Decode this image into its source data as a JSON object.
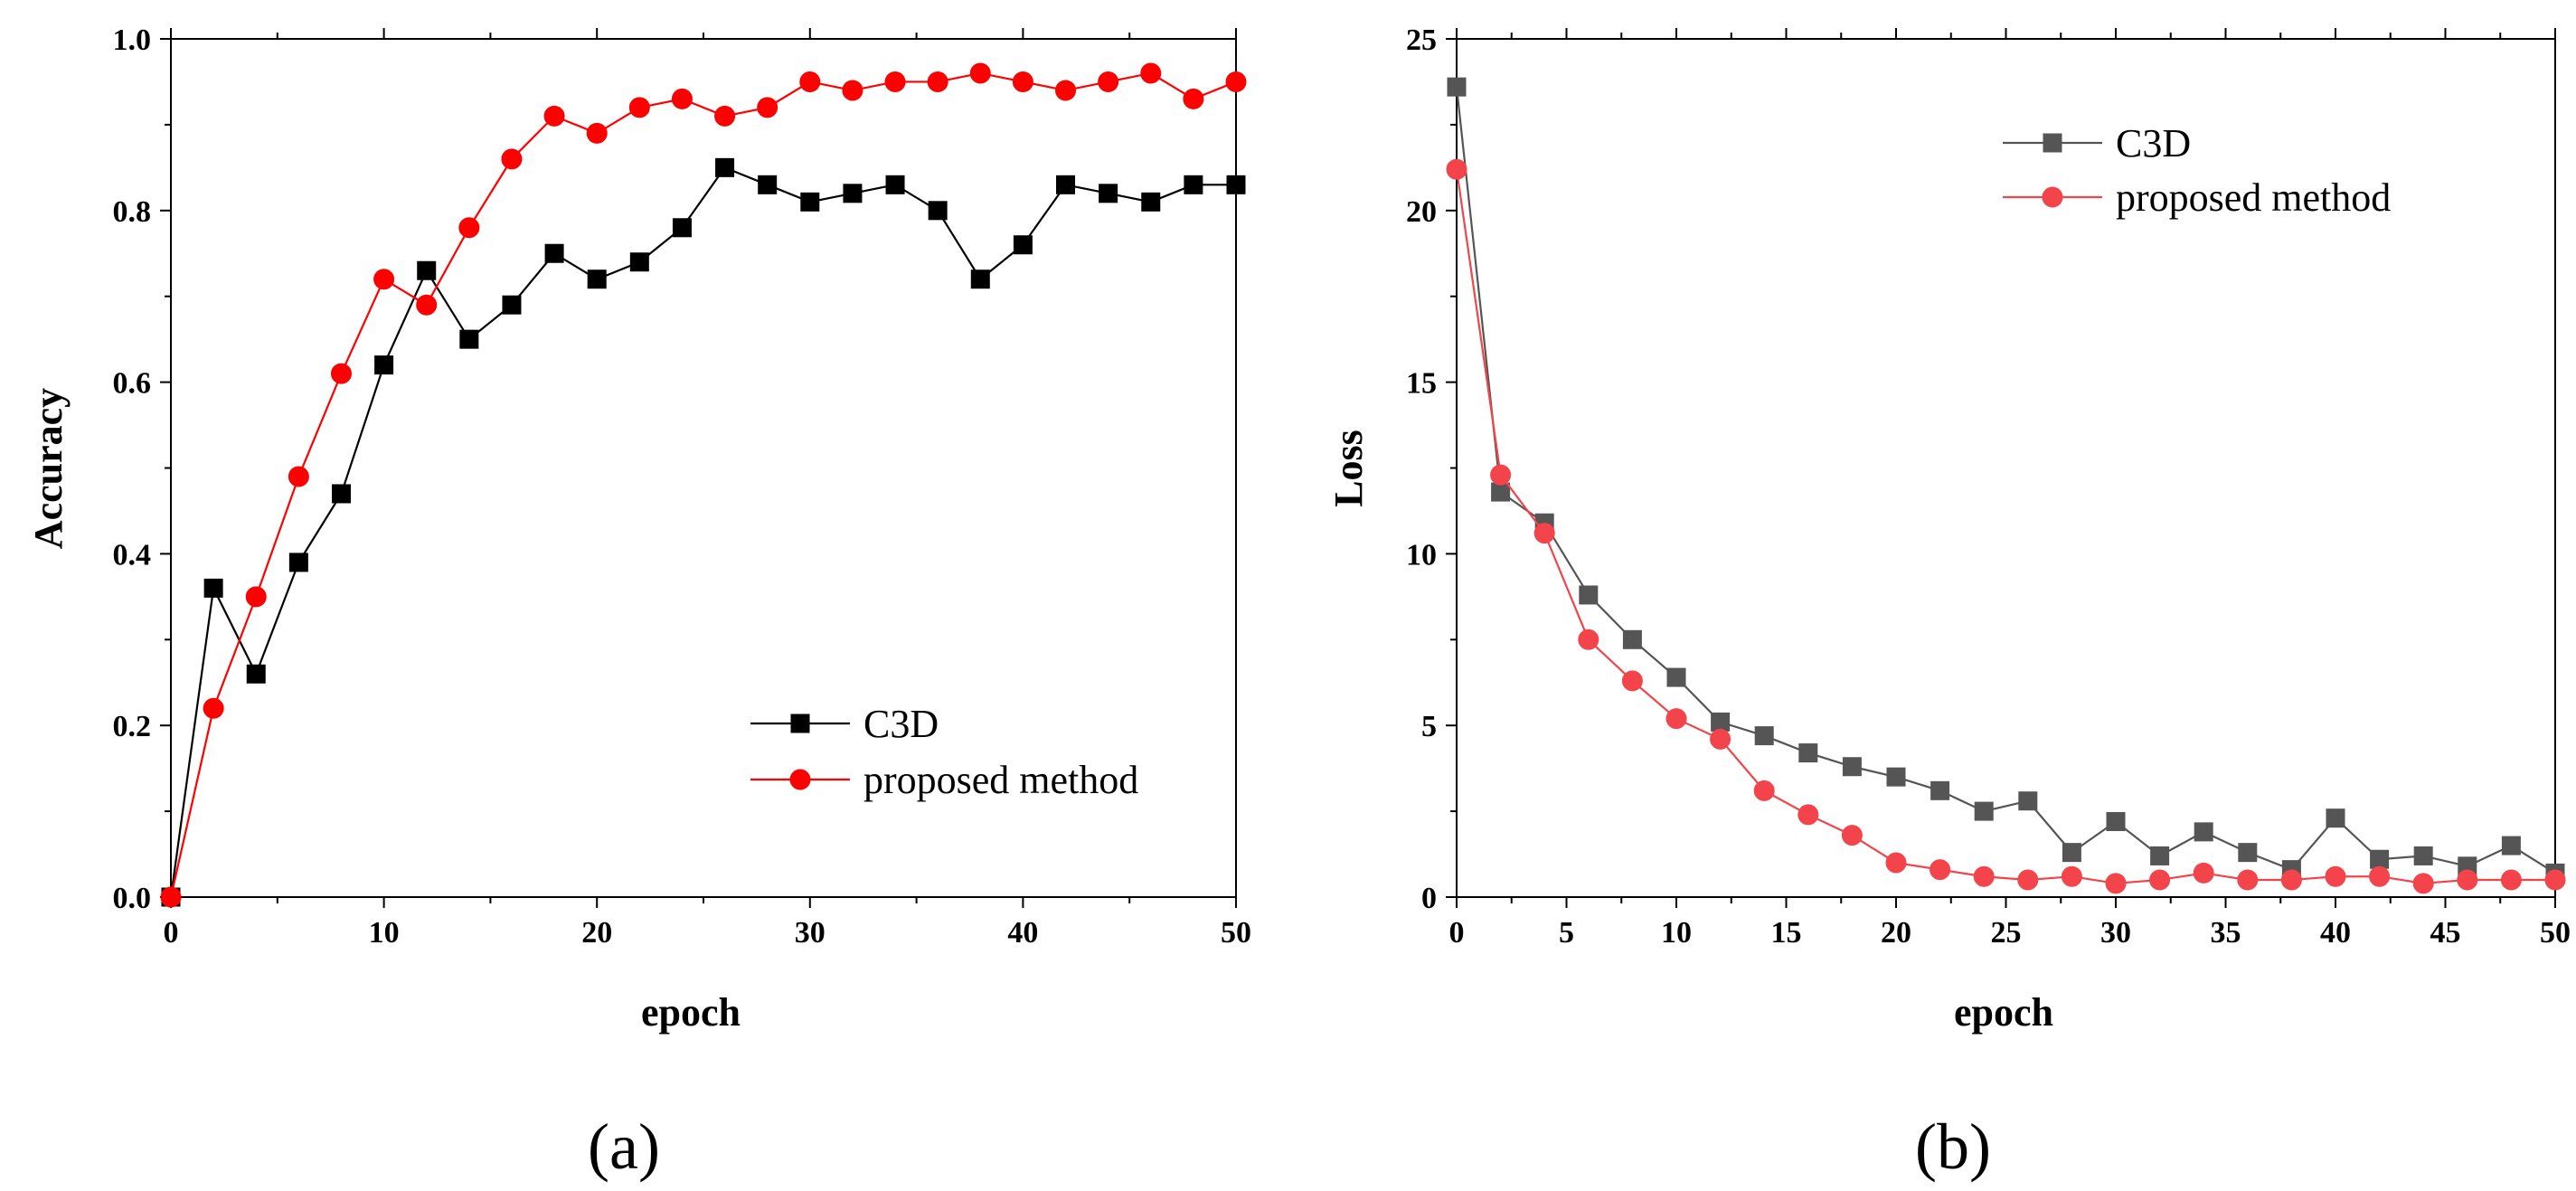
{
  "chart_data": [
    {
      "type": "line",
      "panel_label": "(a)",
      "xlabel": "epoch",
      "ylabel": "Accuracy",
      "xlim": [
        0,
        50
      ],
      "ylim": [
        0,
        1.0
      ],
      "xticks": [
        "0",
        "10",
        "20",
        "30",
        "40",
        "50"
      ],
      "yticks": [
        "0.0",
        "0.2",
        "0.4",
        "0.6",
        "0.8",
        "1.0"
      ],
      "grid": false,
      "legend_position": "lower-right",
      "x": [
        0,
        2,
        4,
        6,
        8,
        10,
        12,
        14,
        16,
        18,
        20,
        22,
        24,
        26,
        28,
        30,
        32,
        34,
        36,
        38,
        40,
        42,
        44,
        46,
        48,
        50
      ],
      "series": [
        {
          "name": "C3D",
          "color": "#000000",
          "marker": "square",
          "values": [
            0.0,
            0.36,
            0.26,
            0.39,
            0.47,
            0.62,
            0.73,
            0.65,
            0.69,
            0.75,
            0.72,
            0.74,
            0.78,
            0.85,
            0.83,
            0.81,
            0.82,
            0.83,
            0.8,
            0.72,
            0.76,
            0.83,
            0.82,
            0.81,
            0.83,
            0.83
          ]
        },
        {
          "name": "proposed method",
          "color": "#ff0000",
          "marker": "circle",
          "values": [
            0.0,
            0.22,
            0.35,
            0.49,
            0.61,
            0.72,
            0.69,
            0.78,
            0.86,
            0.91,
            0.89,
            0.92,
            0.93,
            0.91,
            0.92,
            0.95,
            0.94,
            0.95,
            0.95,
            0.96,
            0.95,
            0.94,
            0.95,
            0.96,
            0.93,
            0.95
          ]
        }
      ]
    },
    {
      "type": "line",
      "panel_label": "(b)",
      "xlabel": "epoch",
      "ylabel": "Loss",
      "xlim": [
        0,
        50
      ],
      "ylim": [
        0,
        25
      ],
      "xticks": [
        "0",
        "5",
        "10",
        "15",
        "20",
        "25",
        "30",
        "35",
        "40",
        "45",
        "50"
      ],
      "yticks": [
        "0",
        "5",
        "10",
        "15",
        "20",
        "25"
      ],
      "grid": false,
      "legend_position": "top-right",
      "x": [
        0,
        2,
        4,
        6,
        8,
        10,
        12,
        14,
        16,
        18,
        20,
        22,
        24,
        26,
        28,
        30,
        32,
        34,
        36,
        38,
        40,
        42,
        44,
        46,
        48,
        50
      ],
      "series": [
        {
          "name": "C3D",
          "color": "#555555",
          "marker": "square",
          "values": [
            23.6,
            11.8,
            10.9,
            8.8,
            7.5,
            6.4,
            5.1,
            4.7,
            4.2,
            3.8,
            3.5,
            3.1,
            2.5,
            2.8,
            1.3,
            2.2,
            1.2,
            1.9,
            1.3,
            0.8,
            2.3,
            1.1,
            1.2,
            0.9,
            1.5,
            0.7
          ]
        },
        {
          "name": "proposed method",
          "color": "#f2444a",
          "marker": "circle",
          "values": [
            21.2,
            12.3,
            10.6,
            7.5,
            6.3,
            5.2,
            4.6,
            3.1,
            2.4,
            1.8,
            1.0,
            0.8,
            0.6,
            0.5,
            0.6,
            0.4,
            0.5,
            0.7,
            0.5,
            0.5,
            0.6,
            0.6,
            0.4,
            0.5,
            0.5,
            0.5
          ]
        }
      ]
    }
  ]
}
